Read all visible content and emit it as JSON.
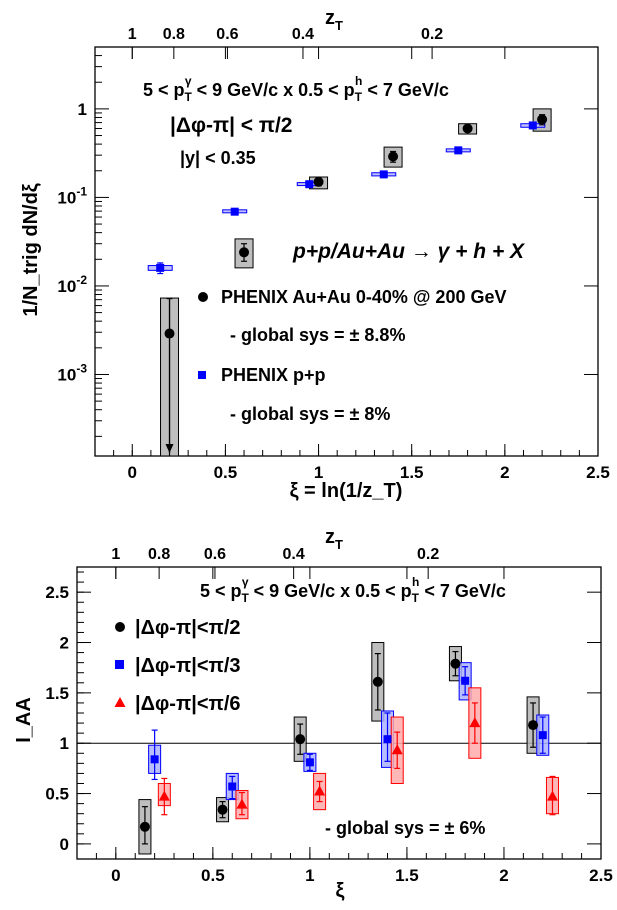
{
  "chart_data": [
    {
      "type": "scatter",
      "top_axis": {
        "label": "z",
        "label_sub": "T",
        "ticks": [
          {
            "value": 1,
            "label": "1"
          },
          {
            "value": 0.8,
            "label": "0.8"
          },
          {
            "value": 0.6,
            "label": "0.6"
          },
          {
            "value": 0.4,
            "label": "0.4"
          },
          {
            "value": 0.2,
            "label": "0.2"
          }
        ]
      },
      "xlabel": "ξ = ln(1/z_T)",
      "ylabel": "1/N_trig dN/dξ",
      "xlim": [
        -0.2,
        2.5
      ],
      "ylim": [
        0.00012,
        5
      ],
      "yscale": "log",
      "x_ticks": [
        {
          "value": 0,
          "label": "0"
        },
        {
          "value": 0.5,
          "label": "0.5"
        },
        {
          "value": 1,
          "label": "1"
        },
        {
          "value": 1.5,
          "label": "1.5"
        },
        {
          "value": 2,
          "label": "2"
        },
        {
          "value": 2.5,
          "label": "2.5"
        }
      ],
      "y_ticks": [
        {
          "value": 1,
          "label": "1",
          "base": "",
          "exp": ""
        },
        {
          "value": 0.1,
          "label": "10^-1",
          "base": "10",
          "exp": "-1"
        },
        {
          "value": 0.01,
          "label": "10^-2",
          "base": "10",
          "exp": "-2"
        },
        {
          "value": 0.001,
          "label": "10^-3",
          "base": "10",
          "exp": "-3"
        }
      ],
      "annotations": {
        "kinematics": "5 < p_T^γ < 9 GeV/c x 0.5 < p_T^h < 7 GeV/c",
        "kin_p1": "5 < p",
        "kin_sub1": "T",
        "kin_sup1": "γ",
        "kin_mid": " < 9 GeV/c x 0.5 < p",
        "kin_sub2": "T",
        "kin_sup2": "h",
        "kin_end": " < 7 GeV/c",
        "dphi": "|Δφ-π| < π/2",
        "rapidity": "|y| < 0.35",
        "process": "p+p/Au+Au → γ + h + X"
      },
      "series": [
        {
          "name": "PHENIX Au+Au 0-40% @ 200 GeV",
          "global_sys": "- global sys = ± 8.8%",
          "color": "#000000",
          "marker": "circle",
          "points": [
            {
              "x": 0.2,
              "y": 0.0029,
              "err_lo": 0.0029,
              "err_hi": 0.0043,
              "sys_lo": 0.00012,
              "sys_hi": 0.0073,
              "upper_limit": true
            },
            {
              "x": 0.6,
              "y": 0.024,
              "err_lo": 0.005,
              "err_hi": 0.006,
              "sys_lo": 0.016,
              "sys_hi": 0.034
            },
            {
              "x": 1.0,
              "y": 0.15,
              "err_lo": 0.015,
              "err_hi": 0.015,
              "sys_lo": 0.125,
              "sys_hi": 0.17
            },
            {
              "x": 1.4,
              "y": 0.29,
              "err_lo": 0.04,
              "err_hi": 0.04,
              "sys_lo": 0.22,
              "sys_hi": 0.37
            },
            {
              "x": 1.8,
              "y": 0.6,
              "err_lo": 0.05,
              "err_hi": 0.05,
              "sys_lo": 0.52,
              "sys_hi": 0.68
            },
            {
              "x": 2.2,
              "y": 0.76,
              "err_lo": 0.1,
              "err_hi": 0.1,
              "sys_lo": 0.56,
              "sys_hi": 1.0
            }
          ]
        },
        {
          "name": "PHENIX p+p",
          "global_sys": "- global sys = ± 8%",
          "color": "#0000ff",
          "marker": "square",
          "points": [
            {
              "x": 0.15,
              "y": 0.016,
              "err_lo": 0.0022,
              "err_hi": 0.0022,
              "sys_lo": 0.015,
              "sys_hi": 0.017
            },
            {
              "x": 0.55,
              "y": 0.069,
              "err_lo": 0.003,
              "err_hi": 0.003,
              "sys_lo": 0.067,
              "sys_hi": 0.071
            },
            {
              "x": 0.95,
              "y": 0.141,
              "err_lo": 0.006,
              "err_hi": 0.006,
              "sys_lo": 0.136,
              "sys_hi": 0.146
            },
            {
              "x": 1.35,
              "y": 0.182,
              "err_lo": 0.008,
              "err_hi": 0.008,
              "sys_lo": 0.175,
              "sys_hi": 0.19
            },
            {
              "x": 1.75,
              "y": 0.34,
              "err_lo": 0.012,
              "err_hi": 0.012,
              "sys_lo": 0.327,
              "sys_hi": 0.353
            },
            {
              "x": 2.15,
              "y": 0.65,
              "err_lo": 0.03,
              "err_hi": 0.03,
              "sys_lo": 0.62,
              "sys_hi": 0.68
            }
          ]
        }
      ]
    },
    {
      "type": "scatter",
      "top_axis": {
        "label": "z",
        "label_sub": "T",
        "ticks": [
          {
            "value": 1,
            "label": "1"
          },
          {
            "value": 0.8,
            "label": "0.8"
          },
          {
            "value": 0.6,
            "label": "0.6"
          },
          {
            "value": 0.4,
            "label": "0.4"
          },
          {
            "value": 0.2,
            "label": "0.2"
          }
        ]
      },
      "xlabel": "ξ",
      "ylabel": "I_AA",
      "xlim": [
        -0.2,
        2.5
      ],
      "ylim": [
        -0.15,
        2.75
      ],
      "yscale": "linear",
      "reference_line": 1,
      "x_ticks": [
        {
          "value": 0,
          "label": "0"
        },
        {
          "value": 0.5,
          "label": "0.5"
        },
        {
          "value": 1,
          "label": "1"
        },
        {
          "value": 1.5,
          "label": "1.5"
        },
        {
          "value": 2,
          "label": "2"
        },
        {
          "value": 2.5,
          "label": "2.5"
        }
      ],
      "y_ticks": [
        {
          "value": 0,
          "label": "0"
        },
        {
          "value": 0.5,
          "label": "0.5"
        },
        {
          "value": 1,
          "label": "1"
        },
        {
          "value": 1.5,
          "label": "1.5"
        },
        {
          "value": 2,
          "label": "2"
        },
        {
          "value": 2.5,
          "label": "2.5"
        }
      ],
      "annotations": {
        "kinematics": "5 < p_T^γ < 9 GeV/c x 0.5 < p_T^h < 7 GeV/c",
        "kin_p1": "5 < p",
        "kin_sub1": "T",
        "kin_sup1": "γ",
        "kin_mid": " < 9 GeV/c x 0.5 < p",
        "kin_sub2": "T",
        "kin_sup2": "h",
        "kin_end": " < 7 GeV/c",
        "global_sys": "- global sys = ± 6%"
      },
      "series": [
        {
          "name": "|Δφ-π|<π/2",
          "color": "#000000",
          "fill": "#b3b3b3",
          "marker": "circle",
          "points": [
            {
              "x": 0.15,
              "y": 0.17,
              "err_lo": 0.17,
              "err_hi": 0.2,
              "sys_lo": -0.1,
              "sys_hi": 0.44
            },
            {
              "x": 0.55,
              "y": 0.34,
              "err_lo": 0.08,
              "err_hi": 0.08,
              "sys_lo": 0.22,
              "sys_hi": 0.46
            },
            {
              "x": 0.95,
              "y": 1.04,
              "err_lo": 0.15,
              "err_hi": 0.15,
              "sys_lo": 0.82,
              "sys_hi": 1.26
            },
            {
              "x": 1.35,
              "y": 1.61,
              "err_lo": 0.28,
              "err_hi": 0.28,
              "sys_lo": 1.22,
              "sys_hi": 2.0
            },
            {
              "x": 1.75,
              "y": 1.79,
              "err_lo": 0.12,
              "err_hi": 0.12,
              "sys_lo": 1.62,
              "sys_hi": 1.96
            },
            {
              "x": 2.15,
              "y": 1.18,
              "err_lo": 0.22,
              "err_hi": 0.22,
              "sys_lo": 0.9,
              "sys_hi": 1.46
            }
          ]
        },
        {
          "name": "|Δφ-π|<π/3",
          "color": "#0000ff",
          "fill": "#aab2ff",
          "marker": "square",
          "points": [
            {
              "x": 0.2,
              "y": 0.84,
              "err_lo": 0.2,
              "err_hi": 0.29,
              "sys_lo": 0.7,
              "sys_hi": 0.98
            },
            {
              "x": 0.6,
              "y": 0.57,
              "err_lo": 0.12,
              "err_hi": 0.1,
              "sys_lo": 0.44,
              "sys_hi": 0.7
            },
            {
              "x": 1.0,
              "y": 0.81,
              "err_lo": 0.08,
              "err_hi": 0.08,
              "sys_lo": 0.72,
              "sys_hi": 0.9
            },
            {
              "x": 1.4,
              "y": 1.04,
              "err_lo": 0.22,
              "err_hi": 0.26,
              "sys_lo": 0.76,
              "sys_hi": 1.32
            },
            {
              "x": 1.8,
              "y": 1.62,
              "err_lo": 0.14,
              "err_hi": 0.14,
              "sys_lo": 1.43,
              "sys_hi": 1.8
            },
            {
              "x": 2.2,
              "y": 1.08,
              "err_lo": 0.18,
              "err_hi": 0.18,
              "sys_lo": 0.88,
              "sys_hi": 1.28
            }
          ]
        },
        {
          "name": "|Δφ-π|<π/6",
          "color": "#ff0000",
          "fill": "#ffaaaa",
          "marker": "triangle",
          "points": [
            {
              "x": 0.25,
              "y": 0.47,
              "err_lo": 0.18,
              "err_hi": 0.18,
              "sys_lo": 0.38,
              "sys_hi": 0.6
            },
            {
              "x": 0.65,
              "y": 0.39,
              "err_lo": 0.1,
              "err_hi": 0.12,
              "sys_lo": 0.25,
              "sys_hi": 0.53
            },
            {
              "x": 1.05,
              "y": 0.52,
              "err_lo": 0.1,
              "err_hi": 0.1,
              "sys_lo": 0.34,
              "sys_hi": 0.7
            },
            {
              "x": 1.45,
              "y": 0.93,
              "err_lo": 0.18,
              "err_hi": 0.18,
              "sys_lo": 0.6,
              "sys_hi": 1.26
            },
            {
              "x": 1.85,
              "y": 1.2,
              "err_lo": 0.2,
              "err_hi": 0.2,
              "sys_lo": 0.85,
              "sys_hi": 1.55
            },
            {
              "x": 2.25,
              "y": 0.47,
              "err_lo": 0.18,
              "err_hi": 0.2,
              "sys_lo": 0.3,
              "sys_hi": 0.66
            }
          ]
        }
      ]
    }
  ]
}
